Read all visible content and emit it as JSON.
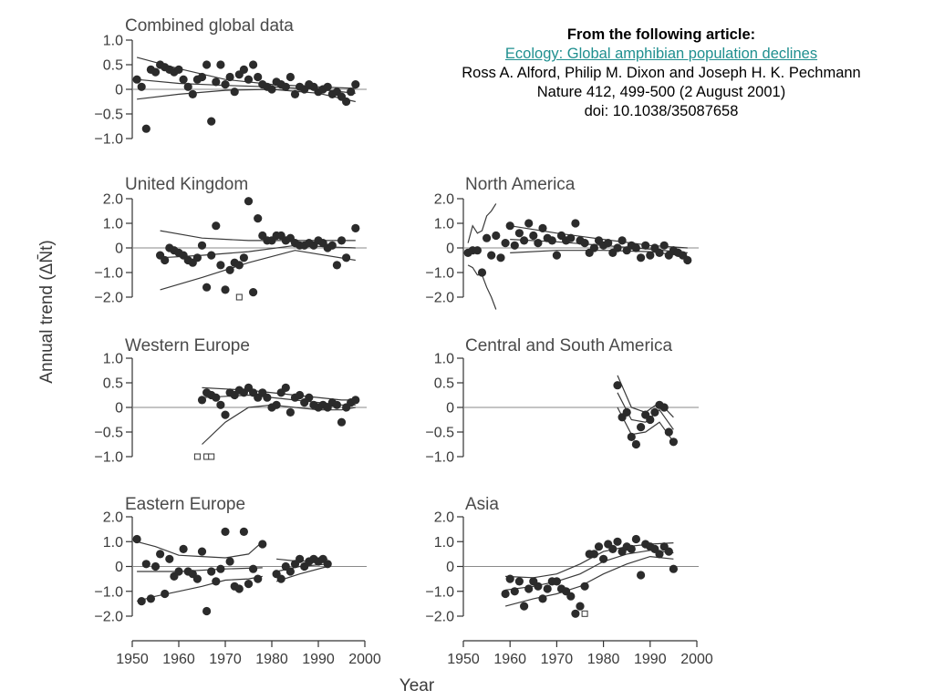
{
  "citation": {
    "heading": "From the following article:",
    "link_text": "Ecology: Global amphibian population declines",
    "authors": "Ross A. Alford, Philip M. Dixon and Joseph H. K. Pechmann",
    "journal": "Nature 412, 499-500 (2 August 2001)",
    "doi": "doi: 10.1038/35087658"
  },
  "y_axis_title": "Annual trend (ΔN̄t)",
  "x_axis_title": "Year",
  "x_tick_labels": [
    "1950",
    "1960",
    "1970",
    "1980",
    "1990",
    "2000"
  ],
  "colors": {
    "points": "#2b2b2b",
    "lines": "#3a3a3a",
    "zero_line": "#8a8a8a",
    "link": "#1f8f8f"
  },
  "chart_data": [
    {
      "id": "combined",
      "type": "scatter",
      "title": "Combined global data",
      "xlim": [
        1950,
        2000
      ],
      "ylim": [
        -1.0,
        1.0
      ],
      "yticks": [
        1.0,
        0.5,
        0,
        -0.5,
        -1.0
      ],
      "ytick_labels": [
        "1.0",
        "0.5",
        "0",
        "−0.5",
        "−1.0"
      ],
      "x": [
        1951,
        1952,
        1953,
        1954,
        1955,
        1956,
        1957,
        1958,
        1959,
        1960,
        1961,
        1962,
        1963,
        1964,
        1965,
        1966,
        1967,
        1968,
        1969,
        1970,
        1971,
        1972,
        1973,
        1974,
        1975,
        1976,
        1977,
        1978,
        1979,
        1980,
        1981,
        1982,
        1983,
        1984,
        1985,
        1986,
        1987,
        1988,
        1989,
        1990,
        1991,
        1992,
        1993,
        1994,
        1995,
        1996,
        1997,
        1998
      ],
      "values": [
        0.2,
        0.05,
        -0.8,
        0.4,
        0.35,
        0.5,
        0.45,
        0.4,
        0.35,
        0.4,
        0.2,
        0.05,
        -0.1,
        0.2,
        0.25,
        0.5,
        -0.65,
        0.15,
        0.5,
        0.1,
        0.25,
        -0.05,
        0.3,
        0.4,
        0.2,
        0.5,
        0.25,
        0.1,
        0.05,
        0.0,
        0.15,
        0.1,
        0.05,
        0.25,
        -0.1,
        0.05,
        0.0,
        0.1,
        0.05,
        -0.05,
        0.0,
        0.05,
        -0.1,
        -0.05,
        -0.15,
        -0.25,
        -0.05,
        0.1
      ],
      "fit": {
        "x": [
          1951,
          1960,
          1970,
          1980,
          1990,
          1998
        ],
        "y": [
          0.2,
          0.12,
          0.08,
          0.05,
          0.0,
          -0.08
        ]
      },
      "lower": {
        "x": [
          1951,
          1960,
          1970,
          1980,
          1990,
          1998
        ],
        "y": [
          -0.2,
          -0.1,
          -0.02,
          0.0,
          -0.08,
          -0.25
        ]
      },
      "upper": {
        "x": [
          1951,
          1960,
          1970,
          1980,
          1990,
          1998
        ],
        "y": [
          0.65,
          0.42,
          0.2,
          0.1,
          0.05,
          0.02
        ]
      }
    },
    {
      "id": "uk",
      "type": "scatter",
      "title": "United Kingdom",
      "xlim": [
        1950,
        2000
      ],
      "ylim": [
        -2.0,
        2.0
      ],
      "yticks": [
        2.0,
        1.0,
        0,
        -1.0,
        -2.0
      ],
      "ytick_labels": [
        "2.0",
        "1.0",
        "0",
        "−1.0",
        "−2.0"
      ],
      "x": [
        1956,
        1957,
        1958,
        1959,
        1960,
        1961,
        1962,
        1963,
        1964,
        1965,
        1966,
        1967,
        1968,
        1969,
        1970,
        1971,
        1972,
        1973,
        1974,
        1975,
        1976,
        1977,
        1978,
        1979,
        1980,
        1981,
        1982,
        1983,
        1984,
        1985,
        1986,
        1987,
        1988,
        1989,
        1990,
        1991,
        1992,
        1993,
        1994,
        1995,
        1996,
        1998
      ],
      "values": [
        -0.3,
        -0.5,
        0.0,
        -0.1,
        -0.2,
        -0.3,
        -0.5,
        -0.6,
        -0.4,
        0.1,
        -1.6,
        -0.3,
        0.9,
        -0.7,
        -1.7,
        -0.9,
        -0.6,
        -0.7,
        -0.4,
        1.9,
        -1.8,
        1.2,
        0.5,
        0.3,
        0.3,
        0.5,
        0.5,
        0.3,
        0.4,
        0.2,
        0.1,
        0.1,
        0.2,
        0.1,
        0.3,
        0.2,
        0.0,
        0.1,
        -0.7,
        0.3,
        -0.4,
        0.8
      ],
      "open_markers": {
        "x": [
          1973
        ],
        "values": [
          -2.0
        ]
      },
      "fit": {
        "x": [
          1956,
          1965,
          1975,
          1985,
          1998
        ],
        "y": [
          -0.4,
          -0.3,
          -0.15,
          0.1,
          0.0
        ]
      },
      "lower": {
        "x": [
          1956,
          1965,
          1975,
          1985,
          1998
        ],
        "y": [
          -1.7,
          -1.2,
          -0.6,
          -0.1,
          -0.5
        ]
      },
      "upper": {
        "x": [
          1956,
          1965,
          1975,
          1985,
          1998
        ],
        "y": [
          0.7,
          0.4,
          0.3,
          0.3,
          0.3
        ]
      }
    },
    {
      "id": "na",
      "type": "scatter",
      "title": "North America",
      "xlim": [
        1950,
        2000
      ],
      "ylim": [
        -2.0,
        2.0
      ],
      "yticks": [
        2.0,
        1.0,
        0,
        -1.0,
        -2.0
      ],
      "ytick_labels": [
        "2.0",
        "1.0",
        "0",
        "−1.0",
        "−2.0"
      ],
      "x": [
        1951,
        1952,
        1953,
        1954,
        1955,
        1956,
        1957,
        1958,
        1959,
        1960,
        1961,
        1962,
        1963,
        1964,
        1965,
        1966,
        1967,
        1968,
        1969,
        1970,
        1971,
        1972,
        1973,
        1974,
        1975,
        1976,
        1977,
        1978,
        1979,
        1980,
        1981,
        1982,
        1983,
        1984,
        1985,
        1986,
        1987,
        1988,
        1989,
        1990,
        1991,
        1992,
        1993,
        1994,
        1995,
        1996,
        1997,
        1998
      ],
      "values": [
        -0.2,
        -0.1,
        -0.1,
        -1.0,
        0.4,
        -0.3,
        0.5,
        -0.4,
        0.2,
        0.9,
        0.1,
        0.6,
        0.3,
        1.0,
        0.5,
        0.2,
        0.8,
        0.4,
        0.3,
        -0.3,
        0.5,
        0.3,
        0.4,
        1.0,
        0.3,
        0.2,
        -0.2,
        0.0,
        0.3,
        0.1,
        0.2,
        -0.2,
        0.0,
        0.3,
        -0.1,
        0.1,
        0.0,
        -0.4,
        0.1,
        -0.3,
        0.0,
        -0.2,
        0.1,
        -0.3,
        -0.1,
        -0.2,
        -0.3,
        -0.5
      ],
      "fit": {
        "x": [
          1960,
          1970,
          1980,
          1990,
          1998
        ],
        "y": [
          0.35,
          0.25,
          0.1,
          -0.05,
          -0.2
        ]
      },
      "lower": {
        "x": [
          1960,
          1970,
          1980,
          1990,
          1998
        ],
        "y": [
          -0.2,
          -0.1,
          -0.1,
          -0.15,
          -0.35
        ]
      },
      "upper": {
        "x": [
          1960,
          1970,
          1980,
          1990,
          1998
        ],
        "y": [
          0.9,
          0.6,
          0.35,
          0.1,
          0.0
        ]
      },
      "early_lower": {
        "x": [
          1951,
          1952,
          1953,
          1954,
          1955,
          1956,
          1957
        ],
        "y": [
          -0.7,
          -0.8,
          -1.1,
          -1.1,
          -1.6,
          -2.0,
          -2.5
        ]
      },
      "early_upper": {
        "x": [
          1951,
          1952,
          1953,
          1954,
          1955,
          1956,
          1957
        ],
        "y": [
          0.2,
          0.9,
          0.6,
          0.7,
          1.3,
          1.5,
          1.8
        ]
      }
    },
    {
      "id": "we",
      "type": "scatter",
      "title": "Western Europe",
      "xlim": [
        1950,
        2000
      ],
      "ylim": [
        -1.0,
        1.0
      ],
      "yticks": [
        1.0,
        0.5,
        0,
        -0.5,
        -1.0
      ],
      "ytick_labels": [
        "1.0",
        "0.5",
        "0",
        "−0.5",
        "−1.0"
      ],
      "x": [
        1965,
        1966,
        1967,
        1968,
        1969,
        1970,
        1971,
        1972,
        1973,
        1974,
        1975,
        1976,
        1977,
        1978,
        1979,
        1980,
        1981,
        1982,
        1983,
        1984,
        1985,
        1986,
        1987,
        1988,
        1989,
        1990,
        1991,
        1992,
        1993,
        1994,
        1995,
        1996,
        1997,
        1998
      ],
      "values": [
        0.15,
        0.3,
        0.25,
        0.2,
        0.05,
        -0.15,
        0.3,
        0.25,
        0.35,
        0.3,
        0.4,
        0.3,
        0.2,
        0.3,
        0.2,
        0.0,
        0.05,
        0.3,
        0.4,
        -0.1,
        0.2,
        0.25,
        0.1,
        0.2,
        0.05,
        0.0,
        0.05,
        0.0,
        0.1,
        0.05,
        -0.3,
        0.0,
        0.1,
        0.15
      ],
      "open_markers": {
        "x": [
          1964,
          1966,
          1967
        ],
        "values": [
          -1.0,
          -1.0,
          -1.0
        ]
      },
      "fit": {
        "x": [
          1965,
          1975,
          1985,
          1995,
          1998
        ],
        "y": [
          0.2,
          0.25,
          0.15,
          0.05,
          0.05
        ]
      },
      "lower": {
        "x": [
          1965,
          1970,
          1975,
          1980,
          1985,
          1990,
          1995,
          1998
        ],
        "y": [
          -0.75,
          -0.3,
          0.0,
          0.05,
          0.0,
          -0.05,
          -0.05,
          0.0
        ]
      },
      "upper": {
        "x": [
          1965,
          1975,
          1985,
          1995,
          1998
        ],
        "y": [
          0.4,
          0.35,
          0.25,
          0.15,
          0.15
        ]
      }
    },
    {
      "id": "csa",
      "type": "scatter",
      "title": "Central and South America",
      "xlim": [
        1950,
        2000
      ],
      "ylim": [
        -1.0,
        1.0
      ],
      "yticks": [
        1.0,
        0.5,
        0,
        -0.5,
        -1.0
      ],
      "ytick_labels": [
        "1.0",
        "0.5",
        "0",
        "−0.5",
        "−1.0"
      ],
      "x": [
        1983,
        1984,
        1985,
        1986,
        1987,
        1988,
        1989,
        1990,
        1991,
        1992,
        1993,
        1994,
        1995
      ],
      "values": [
        0.45,
        -0.2,
        -0.1,
        -0.6,
        -0.75,
        -0.4,
        -0.15,
        -0.25,
        -0.1,
        0.05,
        0.0,
        -0.5,
        -0.7
      ],
      "fit": {
        "x": [
          1983,
          1986,
          1989,
          1992,
          1995
        ],
        "y": [
          0.3,
          -0.25,
          -0.3,
          -0.05,
          -0.45
        ]
      },
      "lower": {
        "x": [
          1983,
          1986,
          1989,
          1992,
          1995
        ],
        "y": [
          0.0,
          -0.55,
          -0.5,
          -0.3,
          -0.7
        ]
      },
      "upper": {
        "x": [
          1983,
          1986,
          1989,
          1992,
          1995
        ],
        "y": [
          0.65,
          0.0,
          -0.1,
          0.1,
          -0.2
        ]
      }
    },
    {
      "id": "ee",
      "type": "scatter",
      "title": "Eastern Europe",
      "xlim": [
        1950,
        2000
      ],
      "ylim": [
        -2.0,
        2.0
      ],
      "yticks": [
        2.0,
        1.0,
        0,
        -1.0,
        -2.0
      ],
      "ytick_labels": [
        "2.0",
        "1.0",
        "0",
        "−1.0",
        "−2.0"
      ],
      "x": [
        1951,
        1952,
        1953,
        1954,
        1955,
        1956,
        1957,
        1958,
        1959,
        1960,
        1961,
        1962,
        1963,
        1964,
        1965,
        1966,
        1967,
        1968,
        1969,
        1970,
        1971,
        1972,
        1973,
        1974,
        1975,
        1976,
        1977,
        1978,
        1981,
        1982,
        1983,
        1984,
        1985,
        1986,
        1987,
        1988,
        1989,
        1990,
        1991,
        1992
      ],
      "values": [
        1.1,
        -1.4,
        0.1,
        -1.3,
        0.0,
        0.5,
        -1.1,
        0.3,
        -0.4,
        -0.2,
        0.7,
        -0.2,
        -0.3,
        -0.5,
        0.6,
        -1.8,
        -0.2,
        -0.6,
        -0.1,
        1.4,
        0.2,
        -0.8,
        -0.9,
        1.4,
        -0.7,
        -0.1,
        -0.5,
        0.9,
        -0.3,
        -0.5,
        0.0,
        -0.2,
        0.1,
        0.3,
        0.0,
        0.2,
        0.3,
        0.2,
        0.3,
        0.1
      ],
      "fit": {
        "x": [
          1951,
          1960,
          1970,
          1978
        ],
        "y": [
          -0.2,
          -0.2,
          -0.1,
          -0.05
        ]
      },
      "lower": {
        "x": [
          1951,
          1955,
          1960,
          1965,
          1970,
          1975,
          1978
        ],
        "y": [
          -1.4,
          -1.2,
          -1.0,
          -0.8,
          -0.55,
          -0.5,
          -0.4
        ]
      },
      "upper": {
        "x": [
          1951,
          1955,
          1960,
          1965,
          1970,
          1975,
          1978
        ],
        "y": [
          1.0,
          0.8,
          0.45,
          0.4,
          0.35,
          0.5,
          1.0
        ]
      },
      "fit2": {
        "x": [
          1981,
          1986,
          1992
        ],
        "y": [
          -0.2,
          0.0,
          0.1
        ]
      },
      "lower2": {
        "x": [
          1981,
          1986,
          1992
        ],
        "y": [
          -0.6,
          -0.3,
          0.0
        ]
      },
      "upper2": {
        "x": [
          1981,
          1986,
          1992
        ],
        "y": [
          0.3,
          0.2,
          0.3
        ]
      }
    },
    {
      "id": "asia",
      "type": "scatter",
      "title": "Asia",
      "xlim": [
        1950,
        2000
      ],
      "ylim": [
        -2.0,
        2.0
      ],
      "yticks": [
        2.0,
        1.0,
        0,
        -1.0,
        -2.0
      ],
      "ytick_labels": [
        "2.0",
        "1.0",
        "0",
        "−1.0",
        "−2.0"
      ],
      "x": [
        1959,
        1960,
        1961,
        1962,
        1963,
        1964,
        1965,
        1966,
        1967,
        1968,
        1969,
        1970,
        1971,
        1972,
        1973,
        1974,
        1975,
        1976,
        1977,
        1978,
        1979,
        1980,
        1981,
        1982,
        1983,
        1984,
        1985,
        1986,
        1987,
        1988,
        1989,
        1990,
        1991,
        1992,
        1993,
        1994,
        1995
      ],
      "values": [
        -1.1,
        -0.5,
        -1.0,
        -0.6,
        -1.6,
        -0.9,
        -0.6,
        -0.8,
        -1.3,
        -0.9,
        -0.6,
        -0.6,
        -0.9,
        -1.0,
        -1.2,
        -1.9,
        -1.6,
        -0.8,
        0.5,
        0.5,
        0.8,
        0.3,
        0.9,
        0.7,
        1.0,
        0.6,
        0.8,
        0.7,
        1.1,
        -0.35,
        0.9,
        0.8,
        0.7,
        0.5,
        0.8,
        0.6,
        -0.1
      ],
      "open_markers": {
        "x": [
          1976
        ],
        "values": [
          -1.9
        ]
      },
      "fit": {
        "x": [
          1959,
          1965,
          1970,
          1975,
          1980,
          1985,
          1990,
          1995
        ],
        "y": [
          -0.95,
          -0.8,
          -0.6,
          -0.3,
          0.2,
          0.5,
          0.65,
          0.55
        ]
      },
      "lower": {
        "x": [
          1959,
          1965,
          1970,
          1975,
          1980,
          1985,
          1990,
          1995
        ],
        "y": [
          -1.6,
          -1.3,
          -1.1,
          -0.8,
          -0.3,
          0.1,
          0.4,
          0.3
        ]
      },
      "upper": {
        "x": [
          1959,
          1965,
          1970,
          1975,
          1980,
          1985,
          1990,
          1995
        ],
        "y": [
          -0.4,
          -0.45,
          -0.3,
          0.1,
          0.6,
          0.8,
          0.9,
          0.95
        ]
      }
    }
  ]
}
